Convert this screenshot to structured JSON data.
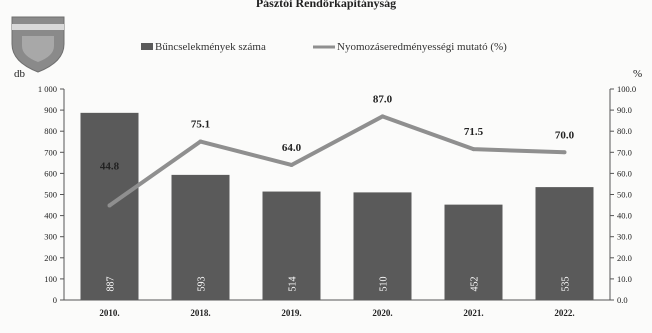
{
  "header": {
    "title": "Pásztói Rendőrkapitányság"
  },
  "legend": {
    "bars": "Bűncselekmények száma",
    "line": "Nyomozáseredményességi mutató (%)"
  },
  "colors": {
    "bar": "#5a5a5a",
    "line": "#8f8f8f",
    "axis": "#555555",
    "logo": "#7b7b7b"
  },
  "chart_data": {
    "type": "bar",
    "categories": [
      "2010.",
      "2018.",
      "2019.",
      "2020.",
      "2021.",
      "2022."
    ],
    "series": [
      {
        "name": "Bűncselekmények száma",
        "type": "bar",
        "axis": "left",
        "values": [
          887,
          593,
          514,
          510,
          452,
          535
        ]
      },
      {
        "name": "Nyomozáseredményességi mutató (%)",
        "type": "line",
        "axis": "right",
        "values": [
          44.8,
          75.1,
          64.0,
          87.0,
          71.5,
          70.0
        ]
      }
    ],
    "bar_labels": [
      "887",
      "593",
      "514",
      "510",
      "452",
      "535"
    ],
    "line_labels": [
      "44.8",
      "75.1",
      "64.0",
      "87.0",
      "71.5",
      "70.0"
    ],
    "ylabel": "db",
    "y2label": "%",
    "ylim": [
      0,
      1000
    ],
    "y2lim": [
      0,
      100
    ],
    "yticks": [
      "0",
      "100",
      "200",
      "300",
      "400",
      "500",
      "600",
      "700",
      "800",
      "900",
      "1 000"
    ],
    "y2ticks": [
      "0.0",
      "10.0",
      "20.0",
      "30.0",
      "40.0",
      "50.0",
      "60.0",
      "70.0",
      "80.0",
      "90.0",
      "100.0"
    ],
    "grid": false,
    "legend_position": "top"
  }
}
